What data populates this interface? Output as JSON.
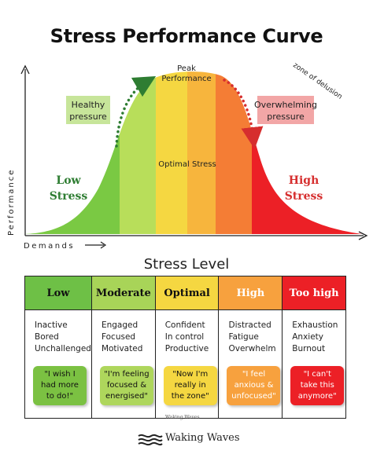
{
  "title": "Stress Performance Curve",
  "curve": {
    "peak_label_line1": "Peak",
    "peak_label_line2": "Performance",
    "healthy_line1": "Healthy",
    "healthy_line2": "pressure",
    "overwhelming_line1": "Overwhelming",
    "overwhelming_line2": "pressure",
    "optimal_stress": "Optimal Stress",
    "zone_of_delusion": "zone of delusion",
    "low_stress_line1": "Low",
    "low_stress_line2": "Stress",
    "high_stress_line1": "High",
    "high_stress_line2": "Stress",
    "y_axis": "Performance",
    "x_axis": "Demands",
    "colors": {
      "green": "#7ac943",
      "light_green": "#b8de5a",
      "yellow": "#f5d741",
      "orange": "#f7a13e",
      "deep_orange": "#f47d35",
      "red": "#ec2026",
      "dark_green_text": "#2e7d32",
      "red_text": "#d62e2e"
    }
  },
  "stress_level": {
    "title": "Stress Level",
    "columns": [
      {
        "header": "Low",
        "header_bg": "#6ec046",
        "header_color": "#111111",
        "items": [
          "Inactive",
          "Bored",
          "Unchallenged"
        ],
        "quote_line1": "\"I wish I",
        "quote_line2": "had more",
        "quote_line3": "to do!\"",
        "quote_bg": "#7bc142",
        "quote_color": "#111111"
      },
      {
        "header": "Moderate",
        "header_bg": "#a8d458",
        "header_color": "#111111",
        "items": [
          "Engaged",
          "Focused",
          "Motivated"
        ],
        "quote_line1": "\"I'm feeling",
        "quote_line2": "focused &",
        "quote_line3": "energised\"",
        "quote_bg": "#aed65c",
        "quote_color": "#111111"
      },
      {
        "header": "Optimal",
        "header_bg": "#f5d741",
        "header_color": "#111111",
        "items": [
          "Confident",
          "In control",
          "Productive"
        ],
        "quote_line1": "\"Now I'm",
        "quote_line2": "really in",
        "quote_line3": "the zone\"",
        "quote_bg": "#f5d741",
        "quote_color": "#111111"
      },
      {
        "header": "High",
        "header_bg": "#f7a13e",
        "header_color": "#ffffff",
        "items": [
          "Distracted",
          "Fatigue",
          "Overwhelm"
        ],
        "quote_line1": "\"I feel",
        "quote_line2": "anxious &",
        "quote_line3": "unfocused\"",
        "quote_bg": "#f7a13e",
        "quote_color": "#ffffff"
      },
      {
        "header": "Too high",
        "header_bg": "#ec2026",
        "header_color": "#ffffff",
        "items": [
          "Exhaustion",
          "Anxiety",
          "Burnout"
        ],
        "quote_line1": "\"I can't",
        "quote_line2": "take this",
        "quote_line3": "anymore\"",
        "quote_bg": "#ec2026",
        "quote_color": "#ffffff"
      }
    ]
  },
  "footer": {
    "small": "Waking Waves",
    "brand": "Waking Waves",
    "logo_icon": "waves-logo-icon"
  }
}
